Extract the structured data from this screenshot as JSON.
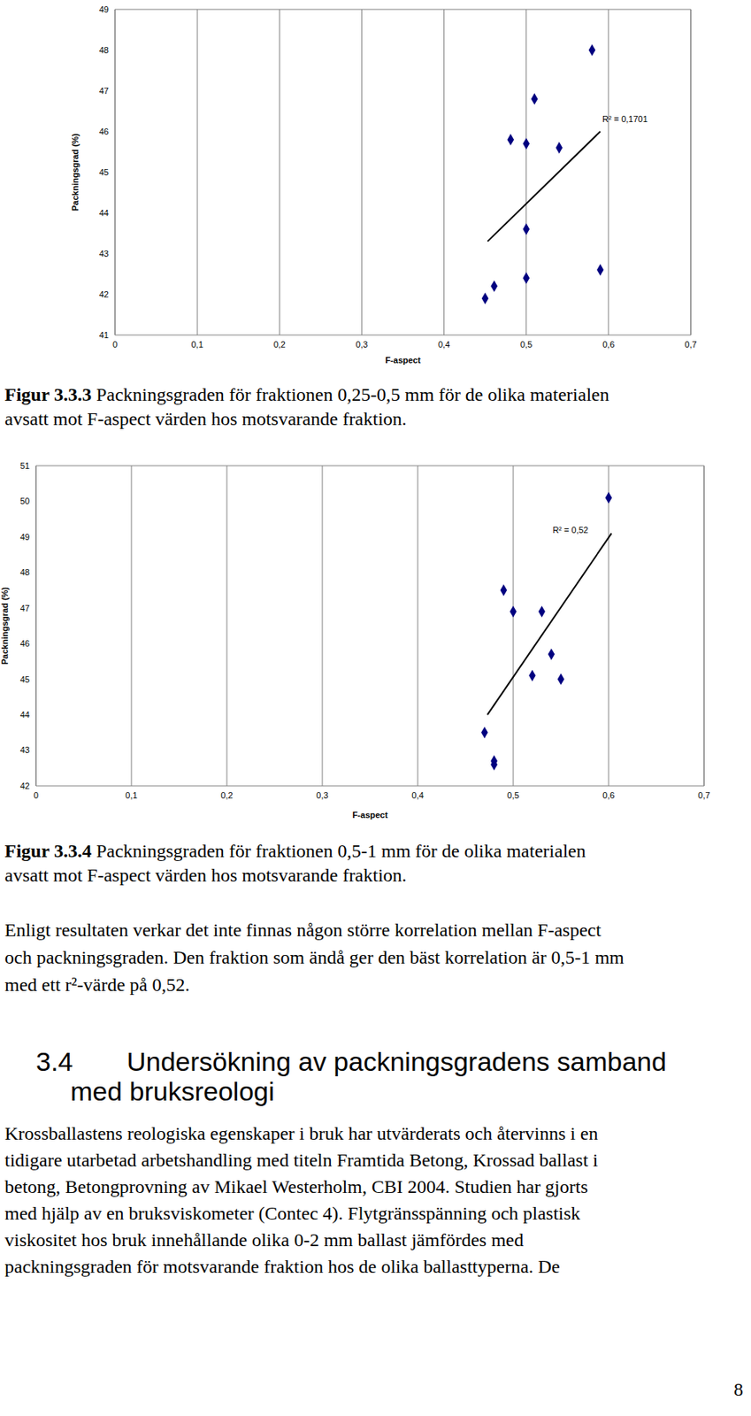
{
  "chart_data": [
    {
      "type": "scatter",
      "x": [
        0.45,
        0.461,
        0.481,
        0.5,
        0.51,
        0.5,
        0.5,
        0.54,
        0.58,
        0.59
      ],
      "values": [
        41.9,
        42.2,
        45.8,
        45.7,
        46.8,
        43.6,
        42.4,
        45.6,
        48.0,
        42.6
      ],
      "color": "#000080",
      "marker": "diamond",
      "xlabel": "F-aspect",
      "ylabel": "Packningsgrad (%)",
      "xlim": [
        0,
        0.7
      ],
      "xticks": [
        0,
        {
          "value": 0.1,
          "label": "0,1"
        },
        {
          "value": 0.2,
          "label": "0,2"
        },
        {
          "value": 0.3,
          "label": "0,3"
        },
        {
          "value": 0.4,
          "label": "0,4"
        },
        {
          "value": 0.5,
          "label": "0,5"
        },
        {
          "value": 0.6,
          "label": "0,6"
        },
        {
          "value": 0.7,
          "label": "0,7"
        }
      ],
      "ylim": [
        41,
        49
      ],
      "yticks": [
        41,
        42,
        43,
        44,
        45,
        46,
        47,
        48,
        49
      ],
      "grid": true,
      "trendline": {
        "x": [
          0.453,
          0.59
        ],
        "values": [
          43.3,
          46.0
        ]
      },
      "annotations": [
        {
          "text": "R² = 0,1701",
          "x": 0.62,
          "y": 46.3
        }
      ]
    },
    {
      "type": "scatter",
      "x": [
        0.6,
        0.49,
        0.5,
        0.53,
        0.54,
        0.52,
        0.55,
        0.47,
        0.48,
        0.48
      ],
      "values": [
        50.1,
        47.5,
        46.9,
        46.9,
        45.7,
        45.1,
        45.0,
        43.5,
        42.7,
        42.6
      ],
      "color": "#000080",
      "marker": "diamond",
      "xlabel": "F-aspect",
      "ylabel": "Packningsgrad (%)",
      "xlim": [
        0,
        0.7
      ],
      "xticks": [
        0,
        {
          "value": 0.1,
          "label": "0,1"
        },
        {
          "value": 0.2,
          "label": "0,2"
        },
        {
          "value": 0.3,
          "label": "0,3"
        },
        {
          "value": 0.4,
          "label": "0,4"
        },
        {
          "value": 0.5,
          "label": "0,5"
        },
        {
          "value": 0.6,
          "label": "0,6"
        },
        {
          "value": 0.7,
          "label": "0,7"
        }
      ],
      "ylim": [
        42,
        51
      ],
      "yticks": [
        42,
        43,
        44,
        45,
        46,
        47,
        48,
        49,
        50,
        51
      ],
      "grid": true,
      "trendline": {
        "x": [
          0.473,
          0.603
        ],
        "values": [
          44.0,
          49.1
        ]
      },
      "annotations": [
        {
          "text": "R² = 0,52",
          "x": 0.56,
          "y": 49.2
        }
      ]
    }
  ],
  "document": {
    "captions": [
      {
        "label": "Figur 3.3.3",
        "lines": [
          "Packningsgraden för fraktionen 0,25-0,5 mm för de olika materialen",
          "avsatt mot F-aspect värden hos motsvarande fraktion."
        ]
      },
      {
        "label": "Figur 3.3.4",
        "lines": [
          "Packningsgraden för fraktionen 0,5-1 mm för de olika materialen",
          "avsatt mot F-aspect värden hos motsvarande fraktion."
        ]
      }
    ],
    "paragraph_1": [
      "Enligt resultaten verkar det inte finnas någon större korrelation mellan F-aspect",
      "och packningsgraden. Den fraktion som ändå ger den bäst korrelation är 0,5-1 mm",
      "med ett r²-värde på 0,52."
    ],
    "heading": {
      "number": "3.4",
      "title_lines": [
        "Undersökning av packningsgradens samband",
        "med bruksreologi"
      ]
    },
    "paragraph_2": [
      "Krossballastens reologiska egenskaper i bruk har utvärderats och återvinns i en",
      "tidigare utarbetad arbetshandling med titeln Framtida Betong, Krossad ballast i",
      "betong, Betongprovning av Mikael Westerholm, CBI 2004. Studien har gjorts",
      "med hjälp av en bruksviskometer (Contec 4). Flytgränsspänning och plastisk",
      "viskositet hos bruk innehållande olika 0-2 mm ballast jämfördes med",
      "packningsgraden för motsvarande fraktion hos de olika ballasttyperna. De"
    ],
    "page_number": "8"
  }
}
